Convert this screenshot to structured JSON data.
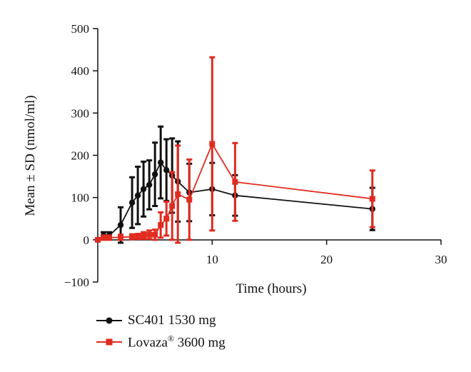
{
  "chart_data": {
    "type": "line",
    "title": "",
    "xlabel": "Time (hours)",
    "ylabel": "Mean ± SD (nmol/ml)",
    "xlim": [
      0,
      30
    ],
    "ylim": [
      -100,
      500
    ],
    "xticks": [
      10,
      20,
      30
    ],
    "yticks": [
      -100,
      0,
      100,
      200,
      300,
      400,
      500
    ],
    "grid": false,
    "legend_position": "bottom-left",
    "series": [
      {
        "name": "SC401 1530 mg",
        "name_main": "SC401 1530 mg",
        "name_sup": "",
        "color": "#111111",
        "marker": "circle",
        "points": [
          {
            "x": 0,
            "y": 0,
            "sd": 0
          },
          {
            "x": 0.5,
            "y": 10,
            "sd": 8
          },
          {
            "x": 1,
            "y": 10,
            "sd": 8
          },
          {
            "x": 2,
            "y": 35,
            "sd": 42
          },
          {
            "x": 3,
            "y": 88,
            "sd": 60
          },
          {
            "x": 3.5,
            "y": 105,
            "sd": 68
          },
          {
            "x": 4,
            "y": 120,
            "sd": 65
          },
          {
            "x": 4.5,
            "y": 130,
            "sd": 58
          },
          {
            "x": 5,
            "y": 155,
            "sd": 75
          },
          {
            "x": 5.5,
            "y": 183,
            "sd": 85
          },
          {
            "x": 6,
            "y": 165,
            "sd": 73
          },
          {
            "x": 6.5,
            "y": 152,
            "sd": 88
          },
          {
            "x": 7,
            "y": 138,
            "sd": 95
          },
          {
            "x": 8,
            "y": 112,
            "sd": 68
          },
          {
            "x": 10,
            "y": 120,
            "sd": 62
          },
          {
            "x": 12,
            "y": 105,
            "sd": 48
          },
          {
            "x": 24,
            "y": 73,
            "sd": 50
          }
        ]
      },
      {
        "name": "Lovaza® 3600 mg",
        "name_main": "Lovaza",
        "name_sup": "®",
        "name_suffix": " 3600 mg",
        "color": "#e02b20",
        "marker": "square",
        "points": [
          {
            "x": 0,
            "y": 0,
            "sd": 0
          },
          {
            "x": 0.5,
            "y": 5,
            "sd": 5
          },
          {
            "x": 1,
            "y": 5,
            "sd": 5
          },
          {
            "x": 2,
            "y": 6,
            "sd": 6
          },
          {
            "x": 3,
            "y": 7,
            "sd": 6
          },
          {
            "x": 3.5,
            "y": 8,
            "sd": 6
          },
          {
            "x": 4,
            "y": 10,
            "sd": 8
          },
          {
            "x": 4.5,
            "y": 12,
            "sd": 10
          },
          {
            "x": 5,
            "y": 12,
            "sd": 12
          },
          {
            "x": 5.5,
            "y": 35,
            "sd": 30
          },
          {
            "x": 6,
            "y": 50,
            "sd": 40
          },
          {
            "x": 6.5,
            "y": 80,
            "sd": 80
          },
          {
            "x": 7,
            "y": 108,
            "sd": 115
          },
          {
            "x": 8,
            "y": 95,
            "sd": 95
          },
          {
            "x": 10,
            "y": 227,
            "sd": 205
          },
          {
            "x": 12,
            "y": 137,
            "sd": 92
          },
          {
            "x": 24,
            "y": 97,
            "sd": 67
          }
        ]
      }
    ]
  }
}
